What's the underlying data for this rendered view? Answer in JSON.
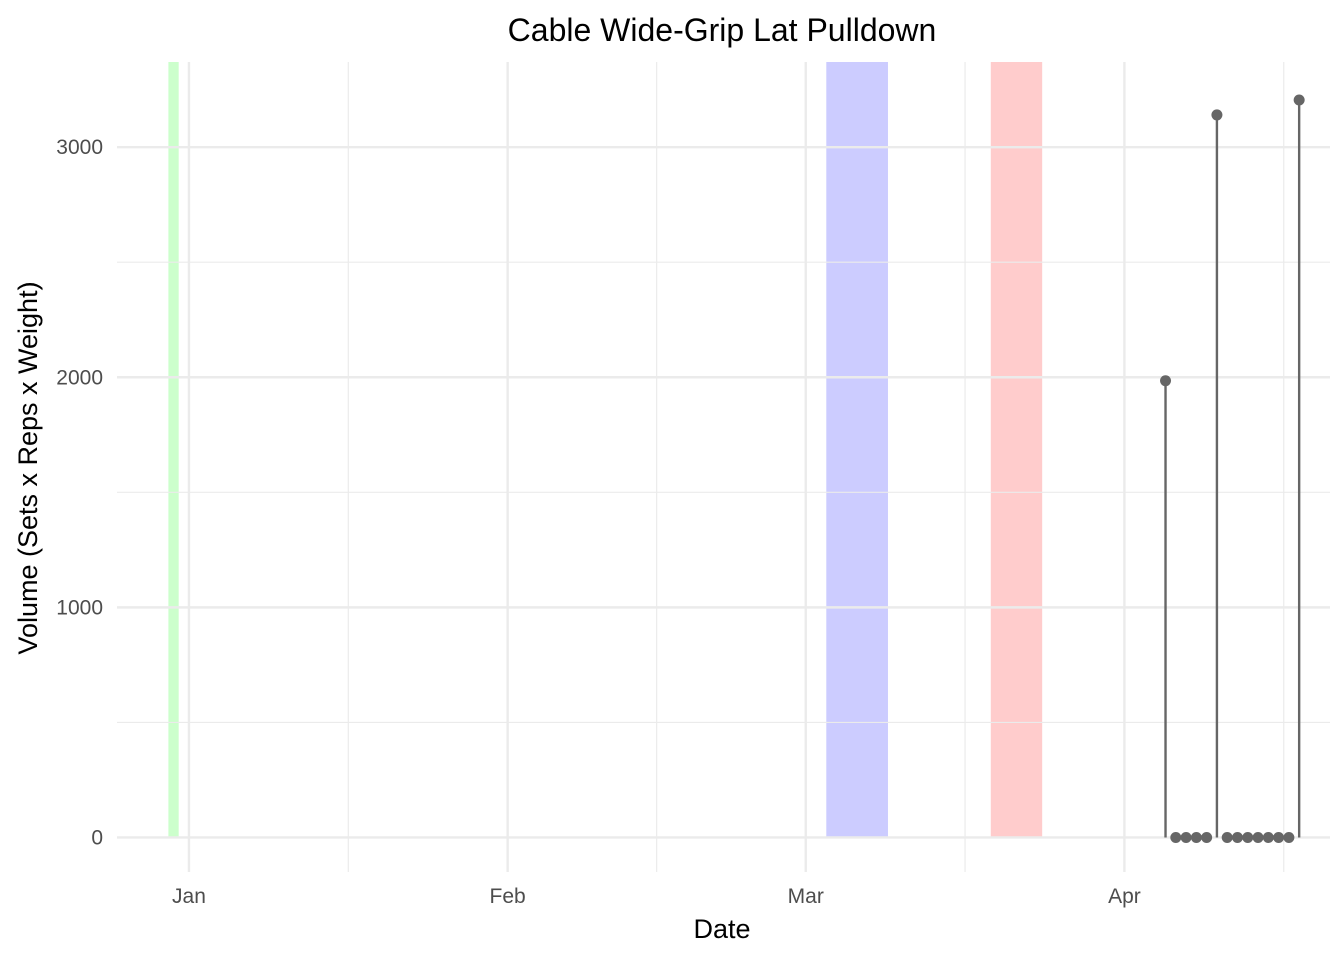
{
  "chart_data": {
    "type": "lollipop",
    "title": "Cable Wide-Grip Lat Pulldown",
    "xlabel": "Date",
    "ylabel": "Volume (Sets x Reps x Weight)",
    "x_ticks": [
      {
        "date": "2024-01-01",
        "label": "Jan"
      },
      {
        "date": "2024-02-01",
        "label": "Feb"
      },
      {
        "date": "2024-03-01",
        "label": "Mar"
      },
      {
        "date": "2024-04-01",
        "label": "Apr"
      }
    ],
    "y_ticks": [
      0,
      1000,
      2000,
      3000
    ],
    "xlim": [
      "2023-12-25",
      "2024-04-21"
    ],
    "ylim": [
      -150,
      3370
    ],
    "grid": true,
    "highlight_bands": [
      {
        "start": "2023-12-30",
        "end": "2023-12-31",
        "color": "#ccffcc"
      },
      {
        "start": "2024-03-03",
        "end": "2024-03-09",
        "color": "#ccccff"
      },
      {
        "start": "2024-03-19",
        "end": "2024-03-24",
        "color": "#ffcccc"
      }
    ],
    "series": [
      {
        "color": "#666666",
        "points": [
          {
            "x": "2024-04-05",
            "y": 1985
          },
          {
            "x": "2024-04-06",
            "y": 0
          },
          {
            "x": "2024-04-07",
            "y": 0
          },
          {
            "x": "2024-04-08",
            "y": 0
          },
          {
            "x": "2024-04-09",
            "y": 0
          },
          {
            "x": "2024-04-10",
            "y": 3140
          },
          {
            "x": "2024-04-11",
            "y": 0
          },
          {
            "x": "2024-04-12",
            "y": 0
          },
          {
            "x": "2024-04-13",
            "y": 0
          },
          {
            "x": "2024-04-14",
            "y": 0
          },
          {
            "x": "2024-04-15",
            "y": 0
          },
          {
            "x": "2024-04-16",
            "y": 0
          },
          {
            "x": "2024-04-17",
            "y": 0
          },
          {
            "x": "2024-04-18",
            "y": 3205
          }
        ]
      }
    ]
  }
}
